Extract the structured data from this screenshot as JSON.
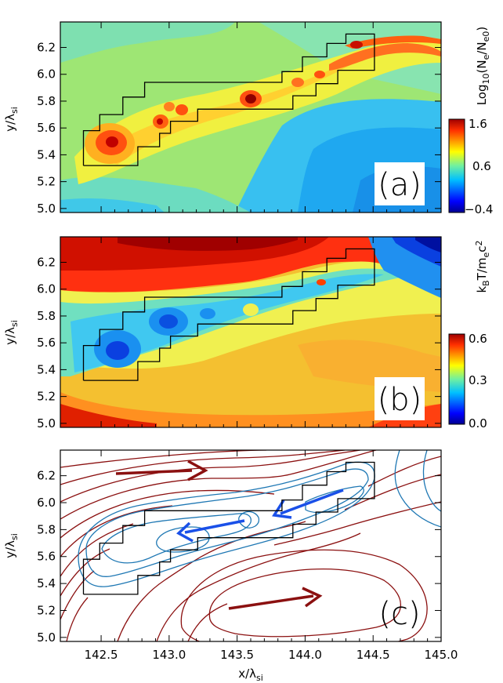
{
  "chart_data": [
    {
      "panel": "a",
      "type": "heatmap",
      "panel_label": "(a)",
      "ylabel": "y/λ_si",
      "xlim": [
        142.2,
        145.0
      ],
      "ylim": [
        4.97,
        6.39
      ],
      "yticks": [
        "5.0",
        "5.2",
        "5.4",
        "5.6",
        "5.8",
        "6.0",
        "6.2"
      ],
      "colorbar": {
        "title": "Log10(Ne/Ne0)",
        "range": [
          -0.4,
          1.6
        ],
        "ticks": [
          "1.6",
          "0.6",
          "−0.4"
        ],
        "colormap": "jet"
      },
      "grid": false
    },
    {
      "panel": "b",
      "type": "heatmap",
      "panel_label": "(b)",
      "ylabel": "y/λ_si",
      "xlim": [
        142.2,
        145.0
      ],
      "ylim": [
        4.97,
        6.39
      ],
      "yticks": [
        "5.0",
        "5.2",
        "5.4",
        "5.6",
        "5.8",
        "6.0",
        "6.2"
      ],
      "colorbar": {
        "title": "kBT/mec²",
        "range": [
          0.0,
          0.6
        ],
        "ticks": [
          "0.6",
          "0.3",
          "0.0"
        ],
        "colormap": "jet"
      },
      "grid": false
    },
    {
      "panel": "c",
      "type": "line",
      "panel_label": "(c)",
      "xlabel": "x/λ_si",
      "ylabel": "y/λ_si",
      "xlim": [
        142.2,
        145.0
      ],
      "ylim": [
        4.97,
        6.39
      ],
      "xticks": [
        "142.5",
        "143.0",
        "143.5",
        "144.0",
        "144.5",
        "145.0"
      ],
      "yticks": [
        "5.0",
        "5.2",
        "5.4",
        "5.6",
        "5.8",
        "6.0",
        "6.2"
      ],
      "series": [
        {
          "kind": "contours",
          "color": "#8b1010",
          "count": 12
        },
        {
          "kind": "contours",
          "color": "#1f78b4",
          "count": 6
        }
      ],
      "arrows": [
        {
          "color": "#8b1010",
          "from": [
            142.65,
            6.23
          ],
          "to": [
            143.2,
            6.27
          ]
        },
        {
          "color": "#8b1010",
          "from": [
            143.2,
            5.19
          ],
          "to": [
            144.0,
            5.29
          ]
        },
        {
          "color": "#1a50e8",
          "from": [
            144.3,
            6.05
          ],
          "to": [
            143.79,
            5.88
          ]
        },
        {
          "color": "#1a50e8",
          "from": [
            143.6,
            5.84
          ],
          "to": [
            143.07,
            5.76
          ]
        }
      ],
      "grid": false
    }
  ],
  "region_outline": [
    [
      142.37,
      5.32
    ],
    [
      142.37,
      5.58
    ],
    [
      142.49,
      5.58
    ],
    [
      142.49,
      5.7
    ],
    [
      142.66,
      5.7
    ],
    [
      142.66,
      5.83
    ],
    [
      142.82,
      5.83
    ],
    [
      142.82,
      5.94
    ],
    [
      143.83,
      5.94
    ],
    [
      143.83,
      6.02
    ],
    [
      143.98,
      6.02
    ],
    [
      143.98,
      6.13
    ],
    [
      144.16,
      6.13
    ],
    [
      144.16,
      6.23
    ],
    [
      144.3,
      6.23
    ],
    [
      144.3,
      6.3
    ],
    [
      144.51,
      6.3
    ],
    [
      144.51,
      6.03
    ],
    [
      144.24,
      6.03
    ],
    [
      144.24,
      5.93
    ],
    [
      144.08,
      5.93
    ],
    [
      144.08,
      5.84
    ],
    [
      143.91,
      5.84
    ],
    [
      143.91,
      5.74
    ],
    [
      143.21,
      5.74
    ],
    [
      143.21,
      5.65
    ],
    [
      143.01,
      5.65
    ],
    [
      143.01,
      5.56
    ],
    [
      142.93,
      5.56
    ],
    [
      142.93,
      5.46
    ],
    [
      142.77,
      5.46
    ],
    [
      142.77,
      5.32
    ]
  ]
}
